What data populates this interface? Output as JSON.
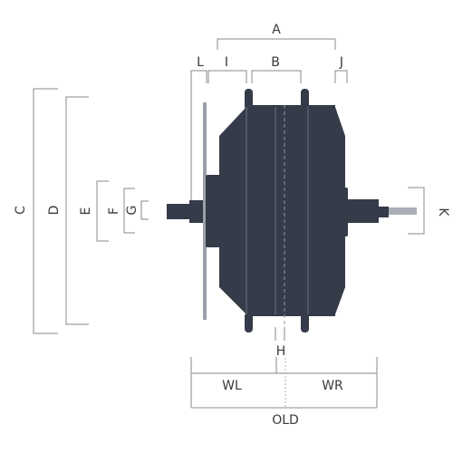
{
  "labels": {
    "A": "A",
    "B": "B",
    "C": "C",
    "D": "D",
    "E": "E",
    "F": "F",
    "G": "G",
    "H": "H",
    "I": "I",
    "J": "J",
    "K": "K",
    "L": "L",
    "WL": "WL",
    "WR": "WR",
    "OLD": "OLD"
  },
  "colors": {
    "motor_body": "#353b48",
    "disc_rotor": "#9aa0aa",
    "axle_end": "#a9aeb8",
    "dimension_lines": "#8a8a8a"
  }
}
